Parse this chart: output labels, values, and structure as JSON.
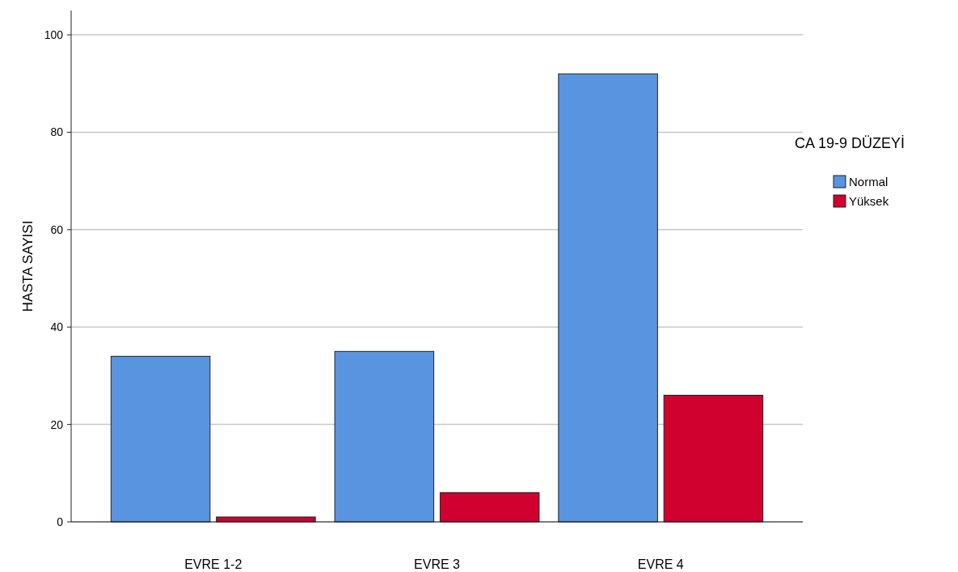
{
  "chart_data": {
    "type": "bar",
    "ylabel": "HASTA SAYISI",
    "legend_title": "CA 19-9 DÜZEYİ",
    "categories": [
      "EVRE 1-2",
      "EVRE 3",
      "EVRE 4"
    ],
    "series": [
      {
        "name": "Normal",
        "color": "#5894e0",
        "values": [
          34,
          35,
          92
        ]
      },
      {
        "name": "Yüksek",
        "color": "#d0002f",
        "values": [
          1,
          6,
          26
        ]
      }
    ],
    "ylim": [
      0,
      105
    ],
    "yticks": [
      0,
      20,
      40,
      60,
      80,
      100
    ],
    "grid": "y",
    "legend": "right"
  }
}
